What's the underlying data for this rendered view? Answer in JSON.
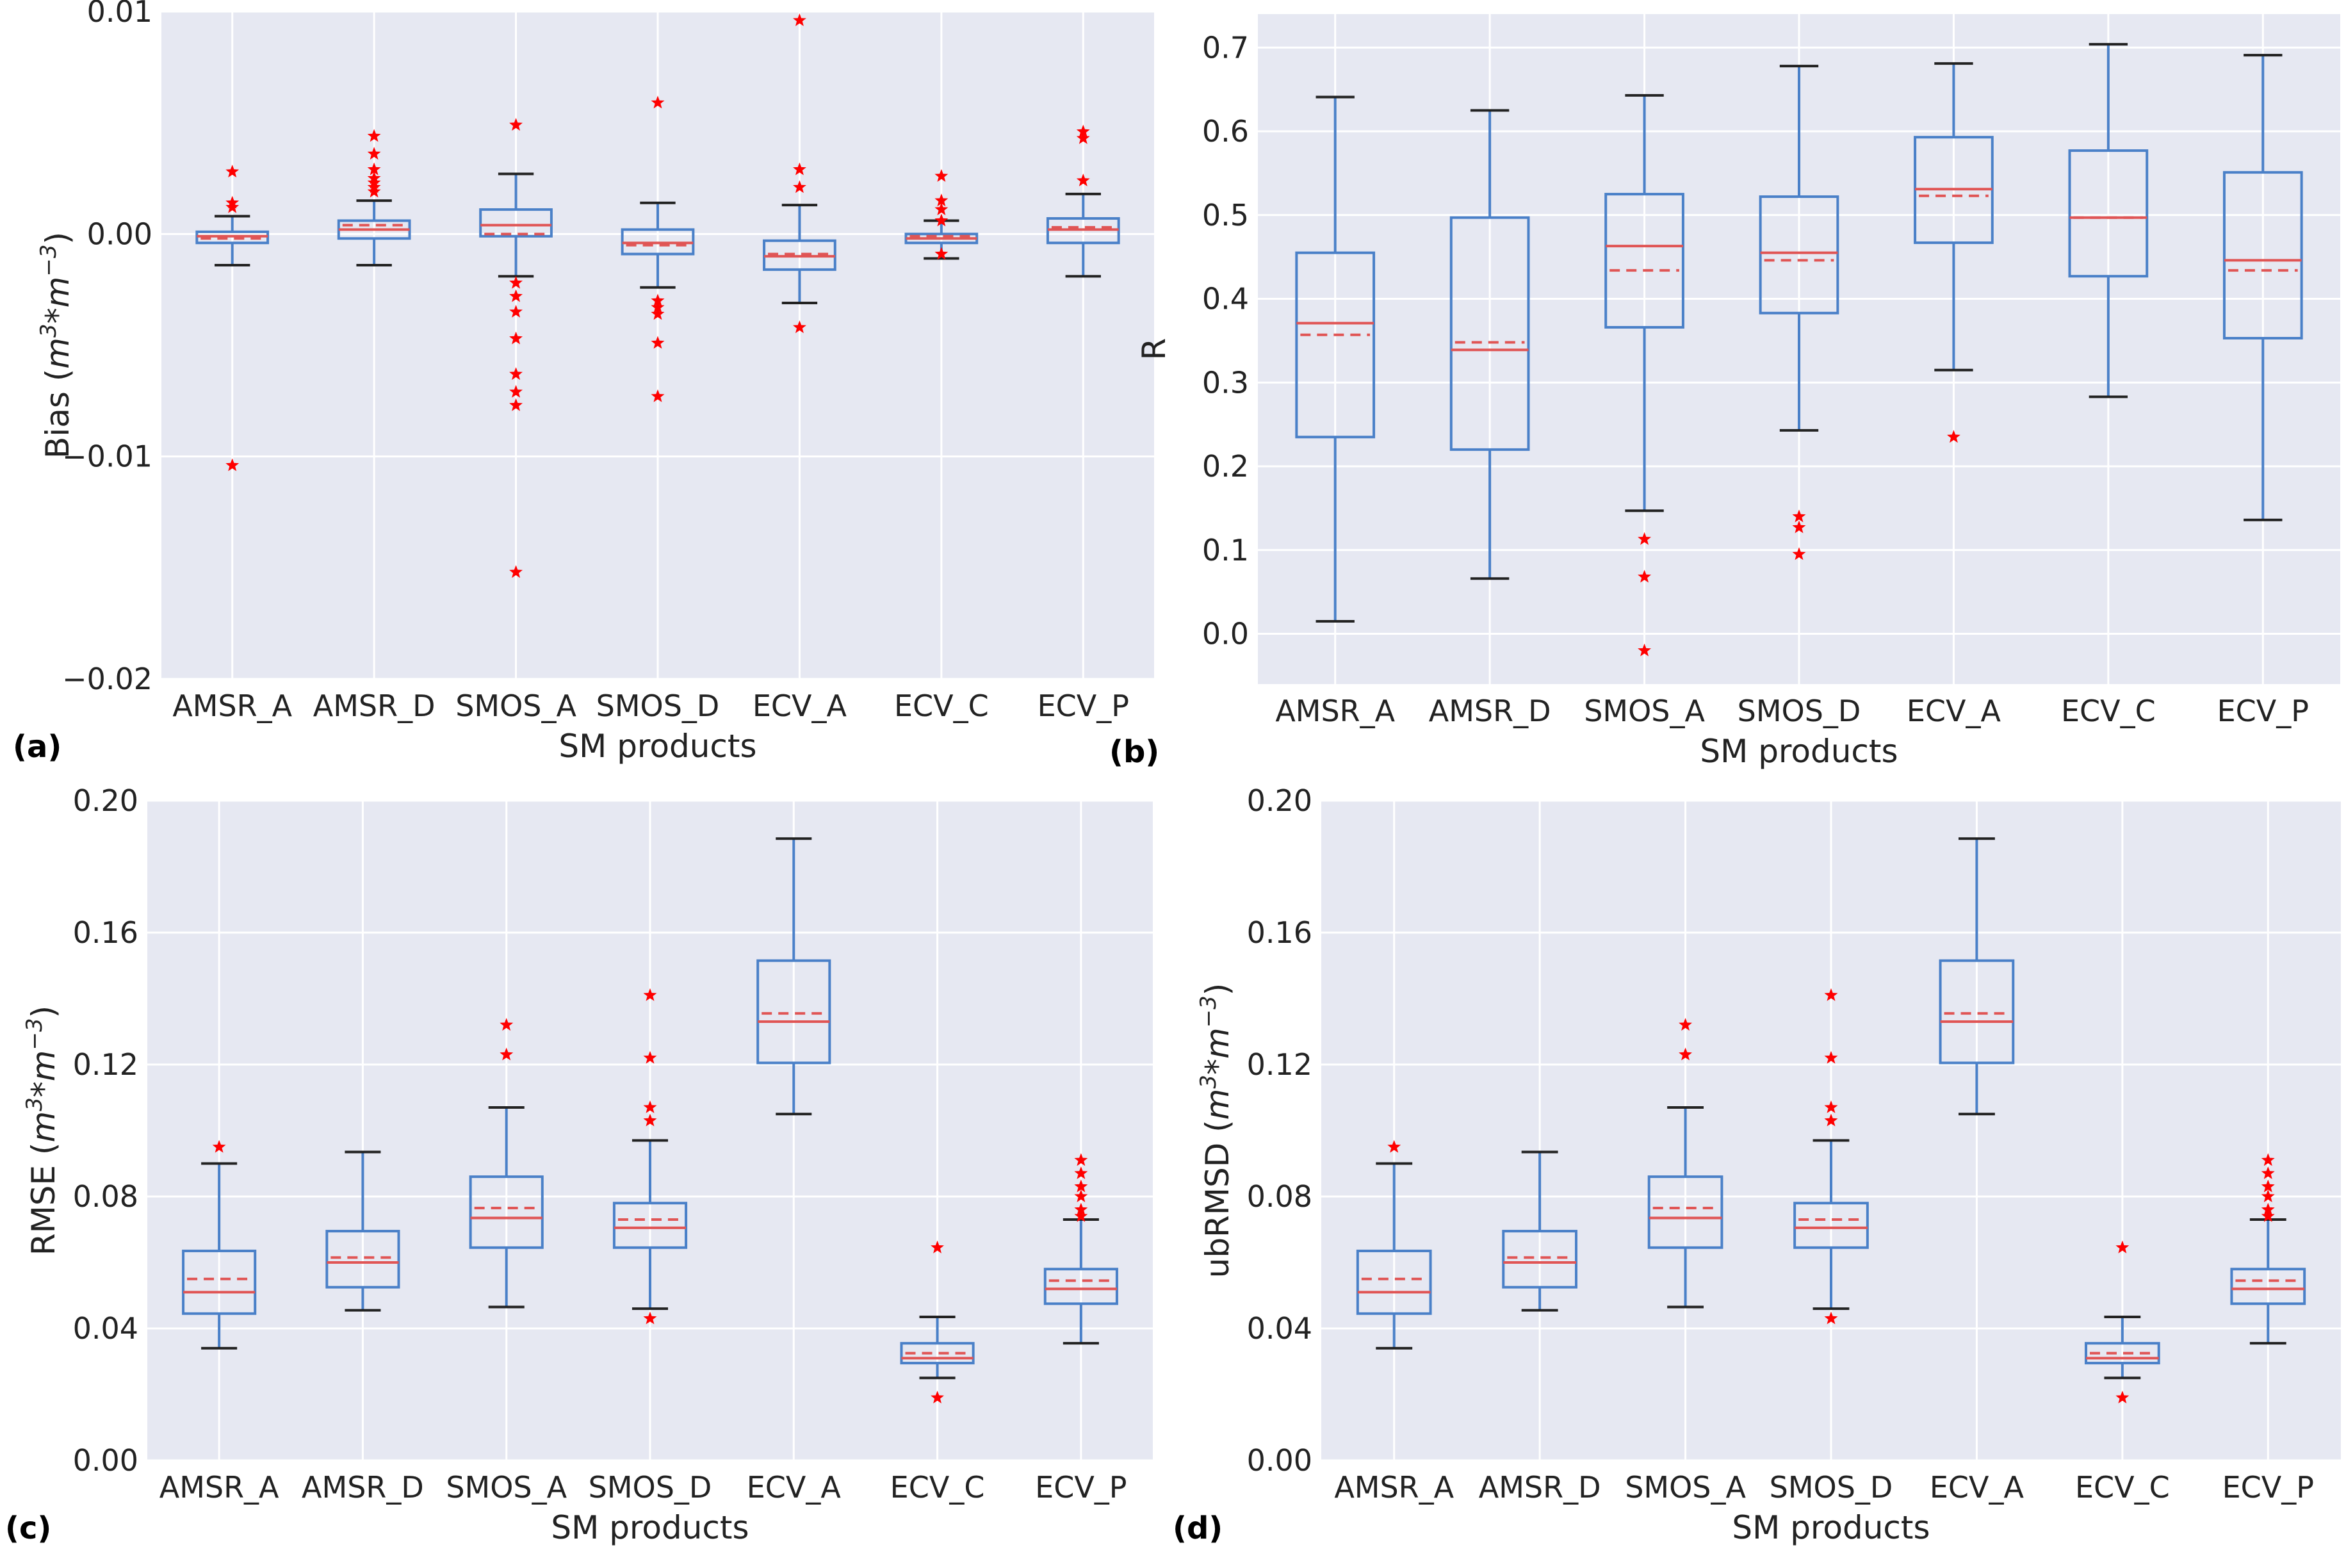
{
  "colors": {
    "plot_bg": "#E6E8F2",
    "grid": "#FFFFFF",
    "box": "#4A80C8",
    "cap": "#222222",
    "median": "#E05555",
    "mean": "#E05555",
    "outlier": "#FF0000"
  },
  "chart_data": [
    {
      "panel_label": "(a)",
      "type": "box",
      "xlabel": "SM products",
      "ylabel": "Bias (m³*m⁻³)",
      "ylabel_main": "Bias (",
      "ylabel_unit_1": "m",
      "ylabel_sup_1": "3",
      "ylabel_unit_2": "*m",
      "ylabel_sup_2": "−3",
      "ylabel_close": ")",
      "ylim": [
        -0.02,
        0.01
      ],
      "yticks": [
        0.01,
        0.0,
        -0.01,
        -0.02
      ],
      "ytick_labels": [
        "0.01",
        "0.00",
        "−0.01",
        "−0.02"
      ],
      "categories": [
        "AMSR_A",
        "AMSR_D",
        "SMOS_A",
        "SMOS_D",
        "ECV_A",
        "ECV_C",
        "ECV_P"
      ],
      "boxes": [
        {
          "whislo": -0.0014,
          "q1": -0.0004,
          "med": -0.0001,
          "mean": -0.0002,
          "q3": 0.0001,
          "whishi": 0.0008,
          "fliers": [
            0.0028,
            0.0014,
            0.0012,
            -0.0104
          ]
        },
        {
          "whislo": -0.0014,
          "q1": -0.0002,
          "med": 0.0002,
          "mean": 0.0004,
          "q3": 0.0006,
          "whishi": 0.0015,
          "fliers": [
            0.0044,
            0.0036,
            0.0029,
            0.0025,
            0.0023,
            0.0021,
            0.0019
          ]
        },
        {
          "whislo": -0.0019,
          "q1": -0.0001,
          "med": 0.0004,
          "mean": 0.0,
          "q3": 0.0011,
          "whishi": 0.0027,
          "fliers": [
            0.0049,
            -0.0022,
            -0.0028,
            -0.0035,
            -0.0047,
            -0.0063,
            -0.0071,
            -0.0077,
            -0.0152
          ]
        },
        {
          "whislo": -0.0024,
          "q1": -0.0009,
          "med": -0.0004,
          "mean": -0.0005,
          "q3": 0.0002,
          "whishi": 0.0014,
          "fliers": [
            0.0059,
            -0.003,
            -0.0033,
            -0.0036,
            -0.0049,
            -0.0073
          ]
        },
        {
          "whislo": -0.0031,
          "q1": -0.0016,
          "med": -0.001,
          "mean": -0.0009,
          "q3": -0.0003,
          "whishi": 0.0013,
          "fliers": [
            0.0096,
            0.0029,
            0.0021,
            -0.0042
          ]
        },
        {
          "whislo": -0.0011,
          "q1": -0.0004,
          "med": -0.0002,
          "mean": -0.0001,
          "q3": 0.0,
          "whishi": 0.0006,
          "fliers": [
            0.0026,
            0.0015,
            0.0011,
            0.0006,
            -0.0009
          ]
        },
        {
          "whislo": -0.0019,
          "q1": -0.0004,
          "med": 0.0002,
          "mean": 0.0003,
          "q3": 0.0007,
          "whishi": 0.0018,
          "fliers": [
            0.0046,
            0.0043,
            0.0024
          ]
        }
      ]
    },
    {
      "panel_label": "(b)",
      "type": "box",
      "xlabel": "SM products",
      "ylabel": "R",
      "ylim": [
        -0.06,
        0.74
      ],
      "yticks": [
        0.0,
        0.1,
        0.2,
        0.3,
        0.4,
        0.5,
        0.6,
        0.7
      ],
      "ytick_labels": [
        "0.0",
        "0.1",
        "0.2",
        "0.3",
        "0.4",
        "0.5",
        "0.6",
        "0.7"
      ],
      "categories": [
        "AMSR_A",
        "AMSR_D",
        "SMOS_A",
        "SMOS_D",
        "ECV_A",
        "ECV_C",
        "ECV_P"
      ],
      "boxes": [
        {
          "whislo": 0.015,
          "q1": 0.235,
          "med": 0.371,
          "mean": 0.357,
          "q3": 0.455,
          "whishi": 0.641,
          "fliers": []
        },
        {
          "whislo": 0.066,
          "q1": 0.22,
          "med": 0.339,
          "mean": 0.348,
          "q3": 0.497,
          "whishi": 0.625,
          "fliers": []
        },
        {
          "whislo": 0.147,
          "q1": 0.366,
          "med": 0.463,
          "mean": 0.434,
          "q3": 0.525,
          "whishi": 0.643,
          "fliers": [
            0.113,
            0.068,
            -0.02
          ]
        },
        {
          "whislo": 0.243,
          "q1": 0.383,
          "med": 0.455,
          "mean": 0.446,
          "q3": 0.522,
          "whishi": 0.678,
          "fliers": [
            0.14,
            0.127,
            0.095
          ]
        },
        {
          "whislo": 0.315,
          "q1": 0.467,
          "med": 0.531,
          "mean": 0.523,
          "q3": 0.593,
          "whishi": 0.681,
          "fliers": [
            0.235
          ]
        },
        {
          "whislo": 0.283,
          "q1": 0.427,
          "med": 0.497,
          "mean": 0.497,
          "q3": 0.577,
          "whishi": 0.704,
          "fliers": []
        },
        {
          "whislo": 0.136,
          "q1": 0.353,
          "med": 0.446,
          "mean": 0.434,
          "q3": 0.551,
          "whishi": 0.691,
          "fliers": []
        }
      ]
    },
    {
      "panel_label": "(c)",
      "type": "box",
      "xlabel": "SM products",
      "ylabel": "RMSE (m³*m⁻³)",
      "ylabel_main": "RMSE (",
      "ylabel_unit_1": "m",
      "ylabel_sup_1": "3",
      "ylabel_unit_2": "*m",
      "ylabel_sup_2": "−3",
      "ylabel_close": ")",
      "ylim": [
        0.0,
        0.2
      ],
      "yticks": [
        0.0,
        0.04,
        0.08,
        0.12,
        0.16,
        0.2
      ],
      "ytick_labels": [
        "0.00",
        "0.04",
        "0.08",
        "0.12",
        "0.16",
        "0.20"
      ],
      "categories": [
        "AMSR_A",
        "AMSR_D",
        "SMOS_A",
        "SMOS_D",
        "ECV_A",
        "ECV_C",
        "ECV_P"
      ],
      "boxes": [
        {
          "whislo": 0.034,
          "q1": 0.0445,
          "med": 0.051,
          "mean": 0.055,
          "q3": 0.0635,
          "whishi": 0.09,
          "fliers": [
            0.095
          ]
        },
        {
          "whislo": 0.0455,
          "q1": 0.0525,
          "med": 0.06,
          "mean": 0.0615,
          "q3": 0.0695,
          "whishi": 0.0935,
          "fliers": []
        },
        {
          "whislo": 0.0465,
          "q1": 0.0645,
          "med": 0.0735,
          "mean": 0.0765,
          "q3": 0.086,
          "whishi": 0.107,
          "fliers": [
            0.132,
            0.123
          ]
        },
        {
          "whislo": 0.046,
          "q1": 0.0645,
          "med": 0.0705,
          "mean": 0.073,
          "q3": 0.078,
          "whishi": 0.097,
          "fliers": [
            0.141,
            0.122,
            0.107,
            0.103,
            0.043
          ]
        },
        {
          "whislo": 0.105,
          "q1": 0.1205,
          "med": 0.133,
          "mean": 0.1355,
          "q3": 0.1515,
          "whishi": 0.1885,
          "fliers": []
        },
        {
          "whislo": 0.025,
          "q1": 0.0295,
          "med": 0.031,
          "mean": 0.0325,
          "q3": 0.0355,
          "whishi": 0.0435,
          "fliers": [
            0.0645,
            0.019
          ]
        },
        {
          "whislo": 0.0355,
          "q1": 0.0475,
          "med": 0.052,
          "mean": 0.0545,
          "q3": 0.058,
          "whishi": 0.073,
          "fliers": [
            0.091,
            0.087,
            0.083,
            0.08,
            0.076,
            0.074
          ]
        }
      ]
    },
    {
      "panel_label": "(d)",
      "type": "box",
      "xlabel": "SM products",
      "ylabel": "ubRMSD (m³*m⁻³)",
      "ylabel_main": "ubRMSD (",
      "ylabel_unit_1": "m",
      "ylabel_sup_1": "3",
      "ylabel_unit_2": "*m",
      "ylabel_sup_2": "−3",
      "ylabel_close": ")",
      "ylim": [
        0.0,
        0.2
      ],
      "yticks": [
        0.0,
        0.04,
        0.08,
        0.12,
        0.16,
        0.2
      ],
      "ytick_labels": [
        "0.00",
        "0.04",
        "0.08",
        "0.12",
        "0.16",
        "0.20"
      ],
      "categories": [
        "AMSR_A",
        "AMSR_D",
        "SMOS_A",
        "SMOS_D",
        "ECV_A",
        "ECV_C",
        "ECV_P"
      ],
      "boxes": [
        {
          "whislo": 0.034,
          "q1": 0.0445,
          "med": 0.051,
          "mean": 0.055,
          "q3": 0.0635,
          "whishi": 0.09,
          "fliers": [
            0.095
          ]
        },
        {
          "whislo": 0.0455,
          "q1": 0.0525,
          "med": 0.06,
          "mean": 0.0615,
          "q3": 0.0695,
          "whishi": 0.0935,
          "fliers": []
        },
        {
          "whislo": 0.0465,
          "q1": 0.0645,
          "med": 0.0735,
          "mean": 0.0765,
          "q3": 0.086,
          "whishi": 0.107,
          "fliers": [
            0.132,
            0.123
          ]
        },
        {
          "whislo": 0.046,
          "q1": 0.0645,
          "med": 0.0705,
          "mean": 0.073,
          "q3": 0.078,
          "whishi": 0.097,
          "fliers": [
            0.141,
            0.122,
            0.107,
            0.103,
            0.043
          ]
        },
        {
          "whislo": 0.105,
          "q1": 0.1205,
          "med": 0.133,
          "mean": 0.1355,
          "q3": 0.1515,
          "whishi": 0.1885,
          "fliers": []
        },
        {
          "whislo": 0.025,
          "q1": 0.0295,
          "med": 0.031,
          "mean": 0.0325,
          "q3": 0.0355,
          "whishi": 0.0435,
          "fliers": [
            0.0645,
            0.019
          ]
        },
        {
          "whislo": 0.0355,
          "q1": 0.0475,
          "med": 0.052,
          "mean": 0.0545,
          "q3": 0.058,
          "whishi": 0.073,
          "fliers": [
            0.091,
            0.087,
            0.083,
            0.08,
            0.076,
            0.074
          ]
        }
      ]
    }
  ]
}
